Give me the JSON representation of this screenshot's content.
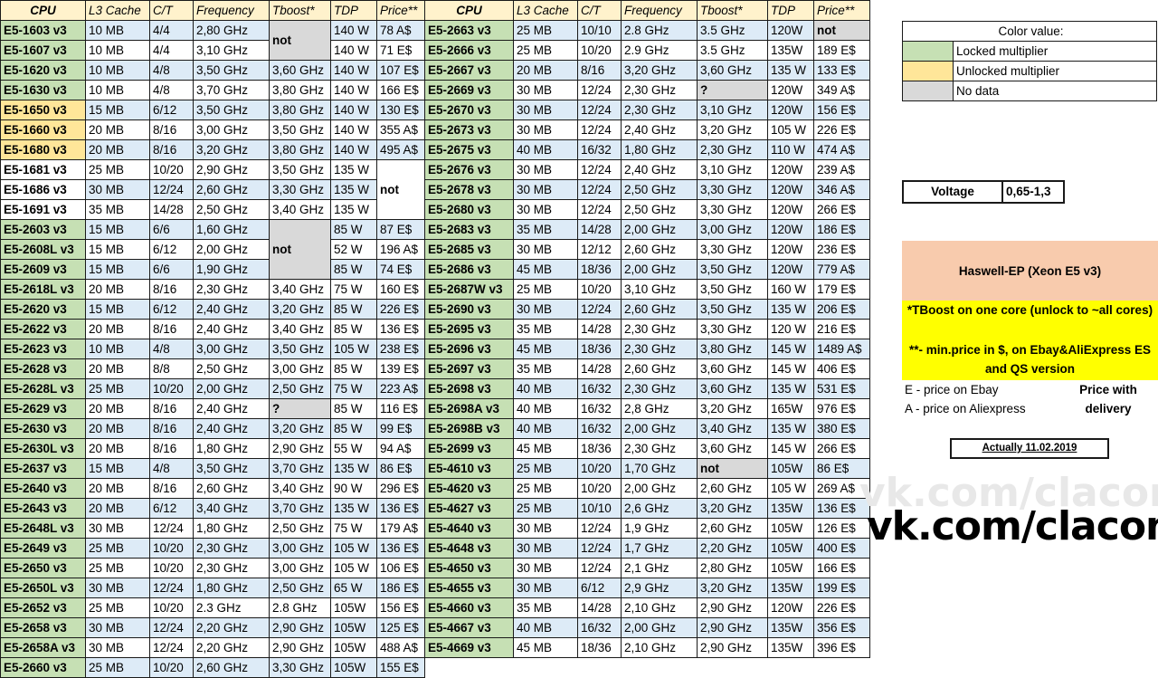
{
  "headers": [
    "CPU",
    "L3 Cache",
    "C/T",
    "Frequency",
    "Tboost*",
    "TDP",
    "Price**"
  ],
  "left_rows": [
    {
      "cpu": "E5-1603 v3",
      "l3": "10 MB",
      "ct": "4/4",
      "freq": "2,80 GHz",
      "tdp": "140 W",
      "price": "78 A$",
      "type": "locked"
    },
    {
      "cpu": "E5-1607 v3",
      "l3": "10 MB",
      "ct": "4/4",
      "freq": "3,10 GHz",
      "tdp": "140 W",
      "price": "71 E$",
      "type": "locked"
    },
    {
      "cpu": "E5-1620 v3",
      "l3": "10 MB",
      "ct": "4/8",
      "freq": "3,50 GHz",
      "tboost": "3,60 GHz",
      "tdp": "140 W",
      "price": "107 E$",
      "type": "locked"
    },
    {
      "cpu": "E5-1630 v3",
      "l3": "10 MB",
      "ct": "4/8",
      "freq": "3,70 GHz",
      "tboost": "3,80 GHz",
      "tdp": "140 W",
      "price": "166 E$",
      "type": "locked"
    },
    {
      "cpu": "E5-1650 v3",
      "l3": "15 MB",
      "ct": "6/12",
      "freq": "3,50 GHz",
      "tboost": "3,80 GHz",
      "tdp": "140 W",
      "price": "130 E$",
      "type": "unlocked"
    },
    {
      "cpu": "E5-1660 v3",
      "l3": "20 MB",
      "ct": "8/16",
      "freq": "3,00 GHz",
      "tboost": "3,50 GHz",
      "tdp": "140 W",
      "price": "355 A$",
      "type": "unlocked"
    },
    {
      "cpu": "E5-1680 v3",
      "l3": "20 MB",
      "ct": "8/16",
      "freq": "3,20 GHz",
      "tboost": "3,80 GHz",
      "tdp": "140 W",
      "price": "495 A$",
      "type": "unlocked"
    },
    {
      "cpu": "E5-1681 v3",
      "l3": "25 MB",
      "ct": "10/20",
      "freq": "2,90 GHz",
      "tboost": "3,50 GHz",
      "tdp": "135 W",
      "type": "nodata"
    },
    {
      "cpu": "E5-1686 v3",
      "l3": "30 MB",
      "ct": "12/24",
      "freq": "2,60 GHz",
      "tboost": "3,30 GHz",
      "tdp": "135 W",
      "type": "nodata"
    },
    {
      "cpu": "E5-1691 v3",
      "l3": "35 MB",
      "ct": "14/28",
      "freq": "2,50 GHz",
      "tboost": "3,40 GHz",
      "tdp": "135 W",
      "type": "nodata"
    },
    {
      "cpu": "E5-2603 v3",
      "l3": "15 MB",
      "ct": "6/6",
      "freq": "1,60 GHz",
      "tdp": "85 W",
      "price": "87 E$",
      "type": "locked"
    },
    {
      "cpu": "E5-2608L v3",
      "l3": "15 MB",
      "ct": "6/12",
      "freq": "2,00 GHz",
      "tdp": "52 W",
      "price": "196 A$",
      "type": "locked"
    },
    {
      "cpu": "E5-2609 v3",
      "l3": "15 MB",
      "ct": "6/6",
      "freq": "1,90 GHz",
      "tdp": "85 W",
      "price": "74 E$",
      "type": "locked"
    },
    {
      "cpu": "E5-2618L v3",
      "l3": "20 MB",
      "ct": "8/16",
      "freq": "2,30 GHz",
      "tboost": "3,40 GHz",
      "tdp": "75 W",
      "price": "160 E$",
      "type": "locked"
    },
    {
      "cpu": "E5-2620 v3",
      "l3": "15 MB",
      "ct": "6/12",
      "freq": "2,40 GHz",
      "tboost": "3,20 GHz",
      "tdp": "85 W",
      "price": "226 E$",
      "type": "locked"
    },
    {
      "cpu": "E5-2622 v3",
      "l3": "20 MB",
      "ct": "8/16",
      "freq": "2,40 GHz",
      "tboost": "3,40 GHz",
      "tdp": "85 W",
      "price": "136 E$",
      "type": "locked"
    },
    {
      "cpu": "E5-2623 v3",
      "l3": "10 MB",
      "ct": "4/8",
      "freq": "3,00 GHz",
      "tboost": "3,50 GHz",
      "tdp": "105 W",
      "price": "238 E$",
      "type": "locked"
    },
    {
      "cpu": "E5-2628 v3",
      "l3": "20 MB",
      "ct": "8/8",
      "freq": "2,50 GHz",
      "tboost": "3,00 GHz",
      "tdp": "85 W",
      "price": "139 E$",
      "type": "locked"
    },
    {
      "cpu": "E5-2628L v3",
      "l3": "25 MB",
      "ct": "10/20",
      "freq": "2,00 GHz",
      "tboost": "2,50 GHz",
      "tdp": "75 W",
      "price": "223 A$",
      "type": "locked"
    },
    {
      "cpu": "E5-2629 v3",
      "l3": "20 MB",
      "ct": "8/16",
      "freq": "2,40 GHz",
      "tboost": "?",
      "tdp": "85 W",
      "price": "116 E$",
      "type": "locked"
    },
    {
      "cpu": "E5-2630 v3",
      "l3": "20 MB",
      "ct": "8/16",
      "freq": "2,40 GHz",
      "tboost": "3,20 GHz",
      "tdp": "85 W",
      "price": "99 E$",
      "type": "locked"
    },
    {
      "cpu": "E5-2630L v3",
      "l3": "20 MB",
      "ct": "8/16",
      "freq": "1,80 GHz",
      "tboost": "2,90 GHz",
      "tdp": "55 W",
      "price": "94 A$",
      "type": "locked"
    },
    {
      "cpu": "E5-2637 v3",
      "l3": "15 MB",
      "ct": "4/8",
      "freq": "3,50 GHz",
      "tboost": "3,70 GHz",
      "tdp": "135 W",
      "price": "86 E$",
      "type": "locked"
    },
    {
      "cpu": "E5-2640 v3",
      "l3": "20 MB",
      "ct": "8/16",
      "freq": "2,60 GHz",
      "tboost": "3,40 GHz",
      "tdp": "90 W",
      "price": "296 E$",
      "type": "locked"
    },
    {
      "cpu": "E5-2643 v3",
      "l3": "20 MB",
      "ct": "6/12",
      "freq": "3,40 GHz",
      "tboost": "3,70 GHz",
      "tdp": "135 W",
      "price": "136 E$",
      "type": "locked"
    },
    {
      "cpu": "E5-2648L v3",
      "l3": "30 MB",
      "ct": "12/24",
      "freq": "1,80 GHz",
      "tboost": "2,50 GHz",
      "tdp": "75 W",
      "price": "179 A$",
      "type": "locked"
    },
    {
      "cpu": "E5-2649 v3",
      "l3": "25 MB",
      "ct": "10/20",
      "freq": "2,30 GHz",
      "tboost": "3,00 GHz",
      "tdp": "105 W",
      "price": "136 E$",
      "type": "locked"
    },
    {
      "cpu": "E5-2650 v3",
      "l3": "25 MB",
      "ct": "10/20",
      "freq": "2,30 GHz",
      "tboost": "3,00 GHz",
      "tdp": "105 W",
      "price": "106 E$",
      "type": "locked"
    },
    {
      "cpu": "E5-2650L v3",
      "l3": "30 MB",
      "ct": "12/24",
      "freq": "1,80 GHz",
      "tboost": "2,50 GHz",
      "tdp": "65 W",
      "price": "186 E$",
      "type": "locked"
    },
    {
      "cpu": "E5-2652 v3",
      "l3": "25 MB",
      "ct": "10/20",
      "freq": "2.3 GHz",
      "tboost": "2.8 GHz",
      "tdp": "105W",
      "price": "156 E$",
      "type": "locked"
    },
    {
      "cpu": "E5-2658 v3",
      "l3": "30 MB",
      "ct": "12/24",
      "freq": "2,20 GHz",
      "tboost": "2,90 GHz",
      "tdp": "105W",
      "price": "125 E$",
      "type": "locked"
    },
    {
      "cpu": "E5-2658A v3",
      "l3": "30 MB",
      "ct": "12/24",
      "freq": "2,20 GHz",
      "tboost": "2,90 GHz",
      "tdp": "105W",
      "price": "488 A$",
      "type": "locked"
    },
    {
      "cpu": "E5-2660 v3",
      "l3": "25 MB",
      "ct": "10/20",
      "freq": "2,60 GHz",
      "tboost": "3,30 GHz",
      "tdp": "105W",
      "price": "155 E$",
      "type": "locked"
    }
  ],
  "left_merged_tboost_1": "not",
  "left_merged_price": "not",
  "left_merged_tboost_2": "not",
  "right_rows": [
    {
      "cpu": "E5-2663 v3",
      "l3": "25 MB",
      "ct": "10/10",
      "freq": "2.8 GHz",
      "tboost": "3.5 GHz",
      "tdp": "120W",
      "price": "not",
      "price_nd": true
    },
    {
      "cpu": "E5-2666 v3",
      "l3": "25 MB",
      "ct": "10/20",
      "freq": "2.9 GHz",
      "tboost": "3.5 GHz",
      "tdp": "135W",
      "price": "189 E$"
    },
    {
      "cpu": "E5-2667 v3",
      "l3": "20 MB",
      "ct": "8/16",
      "freq": "3,20 GHz",
      "tboost": "3,60 GHz",
      "tdp": "135 W",
      "price": "133 E$"
    },
    {
      "cpu": "E5-2669 v3",
      "l3": "30 MB",
      "ct": "12/24",
      "freq": "2,30 GHz",
      "tboost": "?",
      "tboost_nd": true,
      "tdp": "120W",
      "price": "349 A$"
    },
    {
      "cpu": "E5-2670 v3",
      "l3": "30 MB",
      "ct": "12/24",
      "freq": "2,30 GHz",
      "tboost": "3,10 GHz",
      "tdp": "120W",
      "price": "156 E$"
    },
    {
      "cpu": "E5-2673 v3",
      "l3": "30 MB",
      "ct": "12/24",
      "freq": "2,40 GHz",
      "tboost": "3,20 GHz",
      "tdp": "105 W",
      "price": "226 E$"
    },
    {
      "cpu": "E5-2675 v3",
      "l3": "40 MB",
      "ct": "16/32",
      "freq": "1,80 GHz",
      "tboost": "2,30 GHz",
      "tdp": "110 W",
      "price": "474 A$"
    },
    {
      "cpu": "E5-2676 v3",
      "l3": "30 MB",
      "ct": "12/24",
      "freq": "2,40 GHz",
      "tboost": "3,10 GHz",
      "tdp": "120W",
      "price": "239 A$"
    },
    {
      "cpu": "E5-2678 v3",
      "l3": "30 MB",
      "ct": "12/24",
      "freq": "2,50 GHz",
      "tboost": "3,30 GHz",
      "tdp": "120W",
      "price": "346 A$"
    },
    {
      "cpu": "E5-2680 v3",
      "l3": "30 MB",
      "ct": "12/24",
      "freq": "2,50 GHz",
      "tboost": "3,30 GHz",
      "tdp": "120W",
      "price": "266 E$"
    },
    {
      "cpu": "E5-2683 v3",
      "l3": "35 MB",
      "ct": "14/28",
      "freq": "2,00 GHz",
      "tboost": "3,00 GHz",
      "tdp": "120W",
      "price": "186 E$"
    },
    {
      "cpu": "E5-2685 v3",
      "l3": "30 MB",
      "ct": "12/12",
      "freq": "2,60 GHz",
      "tboost": "3,30 GHz",
      "tdp": "120W",
      "price": "236 E$"
    },
    {
      "cpu": "E5-2686 v3",
      "l3": "45 MB",
      "ct": "18/36",
      "freq": "2,00 GHz",
      "tboost": "3,50 GHz",
      "tdp": "120W",
      "price": "779 A$"
    },
    {
      "cpu": "E5-2687W v3",
      "l3": "25 MB",
      "ct": "10/20",
      "freq": "3,10 GHz",
      "tboost": "3,50 GHz",
      "tdp": "160 W",
      "price": "179 E$"
    },
    {
      "cpu": "E5-2690 v3",
      "l3": "30 MB",
      "ct": "12/24",
      "freq": "2,60 GHz",
      "tboost": "3,50 GHz",
      "tdp": "135 W",
      "price": "206 E$"
    },
    {
      "cpu": "E5-2695 v3",
      "l3": "35 MB",
      "ct": "14/28",
      "freq": "2,30 GHz",
      "tboost": "3,30 GHz",
      "tdp": "120 W",
      "price": "216 E$"
    },
    {
      "cpu": "E5-2696 v3",
      "l3": "45 MB",
      "ct": "18/36",
      "freq": "2,30 GHz",
      "tboost": "3,80 GHz",
      "tdp": "145 W",
      "price": "1489 A$"
    },
    {
      "cpu": "E5-2697 v3",
      "l3": "35 MB",
      "ct": "14/28",
      "freq": "2,60 GHz",
      "tboost": "3,60 GHz",
      "tdp": "145 W",
      "price": "406 E$"
    },
    {
      "cpu": "E5-2698 v3",
      "l3": "40 MB",
      "ct": "16/32",
      "freq": "2,30 GHz",
      "tboost": "3,60 GHz",
      "tdp": "135 W",
      "price": "531 E$"
    },
    {
      "cpu": "E5-2698A v3",
      "l3": "40 MB",
      "ct": "16/32",
      "freq": "2,8 GHz",
      "tboost": "3,20 GHz",
      "tdp": "165W",
      "price": "976 E$"
    },
    {
      "cpu": "E5-2698B v3",
      "l3": "40 MB",
      "ct": "16/32",
      "freq": "2,00 GHz",
      "tboost": "3,40 GHz",
      "tdp": "135 W",
      "price": "380 E$"
    },
    {
      "cpu": "E5-2699 v3",
      "l3": "45 MB",
      "ct": "18/36",
      "freq": "2,30 GHz",
      "tboost": "3,60 GHz",
      "tdp": "145 W",
      "price": "266 E$"
    },
    {
      "cpu": "E5-4610 v3",
      "l3": "25 MB",
      "ct": "10/20",
      "freq": "1,70 GHz",
      "tboost": "not",
      "tboost_nd": true,
      "tdp": "105W",
      "price": "86 E$"
    },
    {
      "cpu": "E5-4620 v3",
      "l3": "25 MB",
      "ct": "10/20",
      "freq": "2,00 GHz",
      "tboost": "2,60 GHz",
      "tdp": "105 W",
      "price": "269 A$"
    },
    {
      "cpu": "E5-4627 v3",
      "l3": "25 MB",
      "ct": "10/10",
      "freq": "2,6 GHz",
      "tboost": "3,20 GHz",
      "tdp": "135W",
      "price": "136 E$"
    },
    {
      "cpu": "E5-4640 v3",
      "l3": "30 MB",
      "ct": "12/24",
      "freq": "1,9 GHz",
      "tboost": "2,60 GHz",
      "tdp": "105W",
      "price": "126 E$"
    },
    {
      "cpu": "E5-4648 v3",
      "l3": "30 MB",
      "ct": "12/24",
      "freq": "1,7 GHz",
      "tboost": "2,20 GHz",
      "tdp": "105W",
      "price": "400 E$"
    },
    {
      "cpu": "E5-4650 v3",
      "l3": "30 MB",
      "ct": "12/24",
      "freq": "2,1 GHz",
      "tboost": "2,80 GHz",
      "tdp": "105W",
      "price": "166 E$"
    },
    {
      "cpu": "E5-4655 v3",
      "l3": "30 MB",
      "ct": "6/12",
      "freq": "2,9 GHz",
      "tboost": "3,20 GHz",
      "tdp": "135W",
      "price": "199 E$"
    },
    {
      "cpu": "E5-4660 v3",
      "l3": "35 MB",
      "ct": "14/28",
      "freq": "2,10 GHz",
      "tboost": "2,90 GHz",
      "tdp": "120W",
      "price": "226 E$"
    },
    {
      "cpu": "E5-4667 v3",
      "l3": "40 MB",
      "ct": "16/32",
      "freq": "2,00 GHz",
      "tboost": "2,90 GHz",
      "tdp": "135W",
      "price": "356 E$"
    },
    {
      "cpu": "E5-4669 v3",
      "l3": "45 MB",
      "ct": "18/36",
      "freq": "2,10 GHz",
      "tboost": "2,90 GHz",
      "tdp": "135W",
      "price": "396 E$"
    }
  ],
  "legend": {
    "title": "Color value:",
    "items": [
      {
        "label": "Locked multiplier",
        "color": "#c6e0b4"
      },
      {
        "label": "Unlocked multiplier",
        "color": "#ffe699"
      },
      {
        "label": "No data",
        "color": "#d9d9d9"
      }
    ]
  },
  "voltage": {
    "label": "Voltage",
    "value": "0,65-1,3"
  },
  "platform": "Haswell-EP (Xeon E5 v3)",
  "notes": {
    "tboost": "*TBoost on one core (unlock to ~all cores)",
    "price": "**- min.price in $, on Ebay&AliExpress ES and QS version",
    "ebay": "E - price on Ebay",
    "ali": "A - price on Aliexpress",
    "delivery": "Price with delivery",
    "actual": "Actually 11.02.2019"
  },
  "watermark": "vk.com/clacom",
  "brand": "vk.com/clacom",
  "colors": {
    "locked": "#c6e0b4",
    "unlocked": "#ffe699",
    "nodata": "#d9d9d9",
    "row_alt": "#ddebf7",
    "header": "#fff2cc",
    "platform": "#f8cbad",
    "note": "#ffff00"
  }
}
